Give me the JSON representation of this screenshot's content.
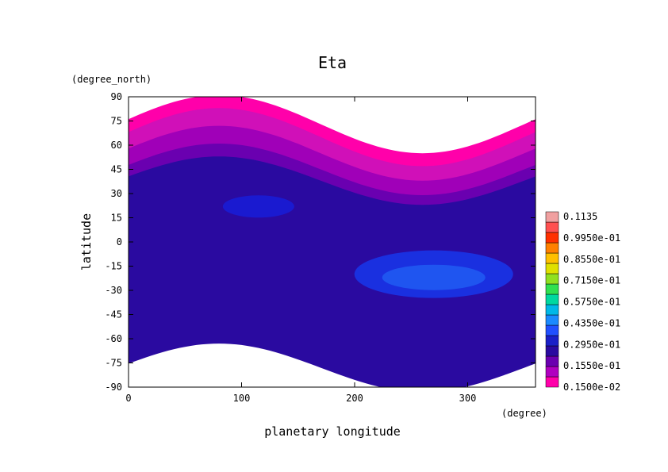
{
  "chart_data": {
    "type": "heatmap",
    "title": "Eta",
    "xlabel": "planetary longitude",
    "xunit": "(degree)",
    "ylabel": "latitude",
    "yunit": "(degree_north)",
    "xlim": [
      0,
      360
    ],
    "ylim": [
      -90,
      90
    ],
    "x_ticks": [
      0,
      100,
      200,
      300
    ],
    "y_ticks": [
      90,
      75,
      60,
      45,
      30,
      15,
      0,
      -15,
      -30,
      -45,
      -60,
      -75,
      -90
    ],
    "colorbar": {
      "labels": [
        "0.1135",
        "0.9950e-01",
        "0.8550e-01",
        "0.7150e-01",
        "0.5750e-01",
        "0.4350e-01",
        "0.2950e-01",
        "0.1550e-01",
        "0.1500e-02"
      ],
      "levels": [
        0.0015,
        0.0085,
        0.0155,
        0.0225,
        0.0295,
        0.0365,
        0.0435,
        0.0505,
        0.0575,
        0.0645,
        0.0715,
        0.0785,
        0.0855,
        0.0925,
        0.0995,
        0.1065,
        0.1135
      ],
      "colors": [
        "#ff00aa",
        "#b000c0",
        "#6a00b0",
        "#2a0aa0",
        "#1a20c8",
        "#2050ff",
        "#1a8aff",
        "#00b8e8",
        "#00d8a0",
        "#30e050",
        "#90e020",
        "#e0e000",
        "#ffc000",
        "#ff8000",
        "#ff3000",
        "#ff5050",
        "#f0a0a0"
      ]
    },
    "bands": [
      {
        "level": 0.0015,
        "color": "#ff00aa",
        "lat_top": 73,
        "lat_bot": -50,
        "wave": 18
      },
      {
        "level": 0.005,
        "color": "#d010b8",
        "lat_top": 65,
        "lat_bot": -55,
        "wave": 18
      },
      {
        "level": 0.0085,
        "color": "#a000b8",
        "lat_top": 55,
        "lat_bot": -62,
        "wave": 17
      },
      {
        "level": 0.012,
        "color": "#6a00b0",
        "lat_top": 45,
        "lat_bot": -70,
        "wave": 16
      },
      {
        "level": 0.0155,
        "color": "#2a0aa0",
        "lat_top": 38,
        "lat_bot": -78,
        "wave": 15
      }
    ],
    "maxima": [
      {
        "lon": 115,
        "lat": 22,
        "level": 0.019
      },
      {
        "lon": 270,
        "lat": -20,
        "level": 0.0225
      },
      {
        "lon": 270,
        "lat": -22,
        "level": 0.026
      }
    ]
  }
}
